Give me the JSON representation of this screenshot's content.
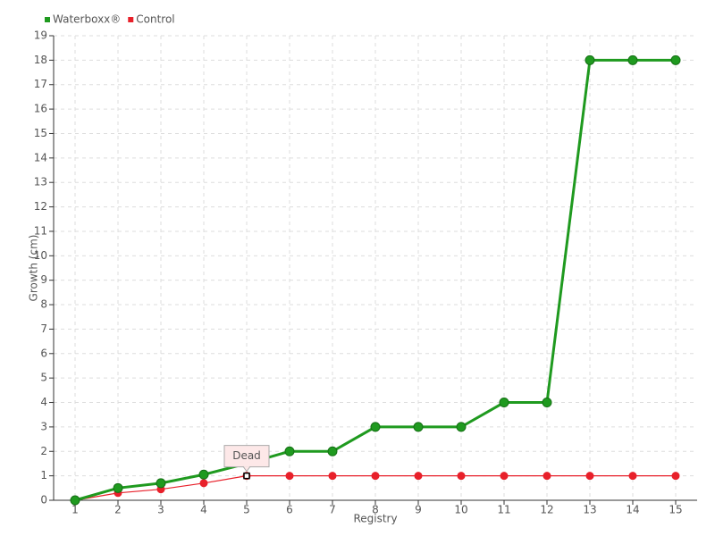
{
  "chart_data": {
    "type": "line",
    "x": [
      1,
      2,
      3,
      4,
      5,
      6,
      7,
      8,
      9,
      10,
      11,
      12,
      13,
      14,
      15
    ],
    "series": [
      {
        "name": "Waterboxx®",
        "color": "#1f9a1f",
        "values": [
          0,
          0.5,
          0.7,
          1.05,
          1.5,
          2,
          2,
          3,
          3,
          3,
          4,
          4,
          18,
          18,
          18
        ]
      },
      {
        "name": "Control",
        "color": "#e8202a",
        "values": [
          0,
          0.3,
          0.45,
          0.7,
          1,
          1,
          1,
          1,
          1,
          1,
          1,
          1,
          1,
          1,
          1
        ]
      }
    ],
    "xlabel": "Registry",
    "ylabel": "Growth (cm)",
    "xlim": [
      0.5,
      15.5
    ],
    "xticks": [
      1,
      2,
      3,
      4,
      5,
      6,
      7,
      8,
      9,
      10,
      11,
      12,
      13,
      14,
      15
    ],
    "ylim": [
      0,
      19
    ],
    "yticks": [
      0,
      1,
      2,
      3,
      4,
      5,
      6,
      7,
      8,
      9,
      10,
      11,
      12,
      13,
      14,
      15,
      16,
      17,
      18,
      19
    ],
    "grid": true,
    "legend": "top-left",
    "annotations": [
      {
        "text": "Dead",
        "x": 5,
        "y": 1
      }
    ]
  }
}
